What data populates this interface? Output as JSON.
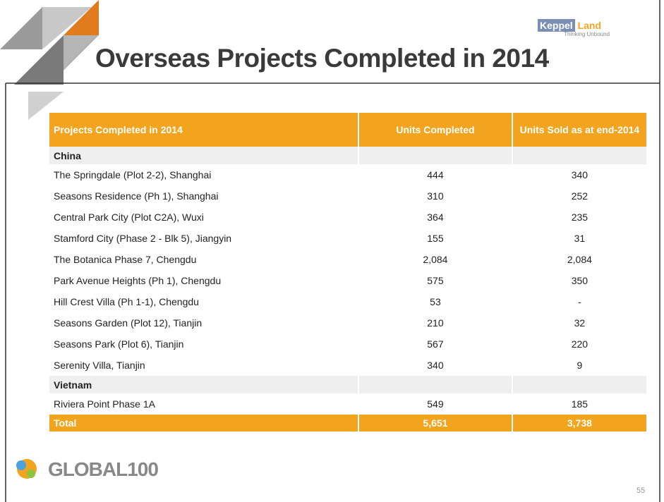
{
  "header": {
    "title": "Overseas Projects Completed in 2014",
    "logo": {
      "brand": "Keppel",
      "brand2": "Land",
      "tagline": "Thinking Unbound"
    }
  },
  "table": {
    "columns": [
      "Projects Completed in 2014",
      "Units  Completed",
      "Units Sold as at end-2014"
    ],
    "sections": [
      {
        "name": "China",
        "rows": [
          [
            "The Springdale (Plot 2-2), Shanghai",
            "444",
            "340"
          ],
          [
            "Seasons Residence  (Ph 1), Shanghai",
            "310",
            "252"
          ],
          [
            "Central Park City (Plot C2A), Wuxi",
            "364",
            "235"
          ],
          [
            "Stamford City (Phase 2 - Blk 5), Jiangyin",
            "155",
            "31"
          ],
          [
            "The Botanica Phase 7, Chengdu",
            "2,084",
            "2,084"
          ],
          [
            "Park Avenue Heights (Ph 1), Chengdu",
            "575",
            "350"
          ],
          [
            "Hill Crest Villa (Ph 1-1), Chengdu",
            "53",
            "-"
          ],
          [
            "Seasons Garden (Plot 12), Tianjin",
            "210",
            "32"
          ],
          [
            "Seasons Park (Plot 6), Tianjin",
            "567",
            "220"
          ],
          [
            "Serenity Villa, Tianjin",
            "340",
            "9"
          ]
        ]
      },
      {
        "name": "Vietnam",
        "rows": [
          [
            "Riviera Point Phase 1A",
            "549",
            "185"
          ]
        ]
      }
    ],
    "total": [
      "Total",
      "5,651",
      "3,738"
    ]
  },
  "footer": {
    "badge": "GLOBAL100",
    "page": "55"
  }
}
